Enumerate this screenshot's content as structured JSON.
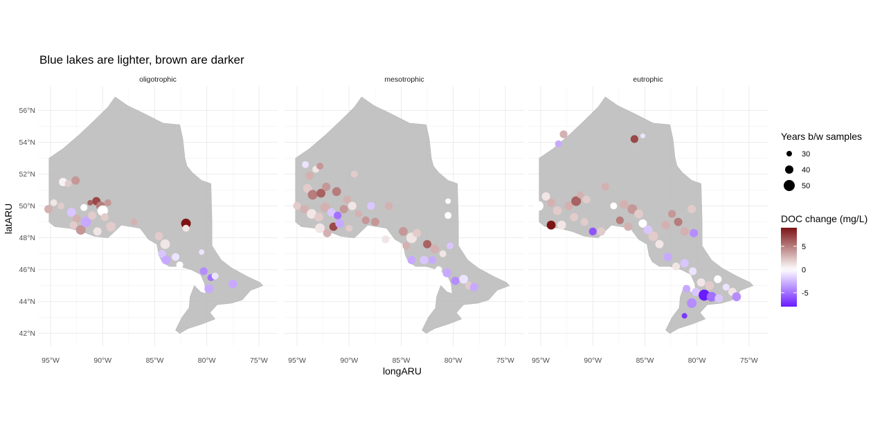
{
  "chart_data": {
    "type": "scatter",
    "title": "Blue lakes are lighter, brown are darker",
    "xlabel": "longARU",
    "ylabel": "latARU",
    "xlim": [
      -96.2,
      -73.2
    ],
    "ylim": [
      41.2,
      57.5
    ],
    "x_ticks": [
      {
        "value": -95,
        "label": "95°W"
      },
      {
        "value": -90,
        "label": "90°W"
      },
      {
        "value": -85,
        "label": "85°W"
      },
      {
        "value": -80,
        "label": "80°W"
      },
      {
        "value": -75,
        "label": "75°W"
      }
    ],
    "y_ticks": [
      {
        "value": 42,
        "label": "42°N"
      },
      {
        "value": 44,
        "label": "44°N"
      },
      {
        "value": 46,
        "label": "46°N"
      },
      {
        "value": 48,
        "label": "48°N"
      },
      {
        "value": 50,
        "label": "50°N"
      },
      {
        "value": 52,
        "label": "52°N"
      },
      {
        "value": 54,
        "label": "54°N"
      },
      {
        "value": 56,
        "label": "56°N"
      }
    ],
    "grid": true,
    "legend_position": "right",
    "size_legend": {
      "title": "Years b/w samples",
      "values": [
        30,
        40,
        50
      ]
    },
    "color_legend": {
      "title": "DOC change (mg/L)",
      "ticks": [
        5,
        0,
        -5
      ],
      "range": [
        -8,
        9
      ],
      "low_color": "#6a1bff",
      "mid_color": "#ffffff",
      "high_color": "#7d1414"
    },
    "map_color": "#bdbdbd",
    "panels": [
      {
        "name": "oligotrophic",
        "points": [
          {
            "x": -95.2,
            "y": 49.8,
            "doc": 3,
            "years": 40
          },
          {
            "x": -94.7,
            "y": 50.2,
            "doc": 1,
            "years": 35
          },
          {
            "x": -93.8,
            "y": 51.5,
            "doc": 0.5,
            "years": 40
          },
          {
            "x": -93.3,
            "y": 51.4,
            "doc": 2,
            "years": 35
          },
          {
            "x": -92.6,
            "y": 51.6,
            "doc": 4,
            "years": 40
          },
          {
            "x": -94.0,
            "y": 50.0,
            "doc": 2,
            "years": 35
          },
          {
            "x": -93.0,
            "y": 49.6,
            "doc": -2,
            "years": 42
          },
          {
            "x": -92.5,
            "y": 49.2,
            "doc": 3,
            "years": 40
          },
          {
            "x": -92.8,
            "y": 48.8,
            "doc": 2,
            "years": 38
          },
          {
            "x": -92.1,
            "y": 48.5,
            "doc": 4,
            "years": 45
          },
          {
            "x": -91.8,
            "y": 49.9,
            "doc": 0,
            "years": 35
          },
          {
            "x": -91.6,
            "y": 49.0,
            "doc": -3,
            "years": 48
          },
          {
            "x": -91.2,
            "y": 50.2,
            "doc": 6,
            "years": 30
          },
          {
            "x": -90.6,
            "y": 50.3,
            "doc": 7,
            "years": 40
          },
          {
            "x": -90.2,
            "y": 50.0,
            "doc": 5,
            "years": 42
          },
          {
            "x": -90.0,
            "y": 49.7,
            "doc": 0,
            "years": 48
          },
          {
            "x": -89.8,
            "y": 49.3,
            "doc": 2,
            "years": 38
          },
          {
            "x": -89.5,
            "y": 50.2,
            "doc": 4,
            "years": 35
          },
          {
            "x": -89.2,
            "y": 48.7,
            "doc": 2,
            "years": 45
          },
          {
            "x": -91.0,
            "y": 49.4,
            "doc": 2,
            "years": 40
          },
          {
            "x": -90.5,
            "y": 48.4,
            "doc": 1,
            "years": 40
          },
          {
            "x": -87.0,
            "y": 49.0,
            "doc": 3,
            "years": 35
          },
          {
            "x": -84.6,
            "y": 48.1,
            "doc": 2,
            "years": 40
          },
          {
            "x": -84.0,
            "y": 47.6,
            "doc": 1,
            "years": 45
          },
          {
            "x": -84.3,
            "y": 47.0,
            "doc": -2,
            "years": 38
          },
          {
            "x": -83.9,
            "y": 46.6,
            "doc": -3,
            "years": 42
          },
          {
            "x": -83.0,
            "y": 46.8,
            "doc": -1,
            "years": 38
          },
          {
            "x": -82.6,
            "y": 46.3,
            "doc": 0,
            "years": 35
          },
          {
            "x": -82.0,
            "y": 48.9,
            "doc": 9,
            "years": 45
          },
          {
            "x": -82.0,
            "y": 48.6,
            "doc": 1,
            "years": 35
          },
          {
            "x": -80.5,
            "y": 47.1,
            "doc": -1,
            "years": 30
          },
          {
            "x": -80.3,
            "y": 45.9,
            "doc": -4,
            "years": 38
          },
          {
            "x": -79.6,
            "y": 45.5,
            "doc": -5,
            "years": 35
          },
          {
            "x": -79.2,
            "y": 45.6,
            "doc": -1,
            "years": 35
          },
          {
            "x": -79.8,
            "y": 44.8,
            "doc": -3,
            "years": 42
          },
          {
            "x": -77.5,
            "y": 45.1,
            "doc": -3,
            "years": 42
          }
        ]
      },
      {
        "name": "mesotrophic",
        "points": [
          {
            "x": -94.2,
            "y": 52.6,
            "doc": -1,
            "years": 35
          },
          {
            "x": -93.2,
            "y": 52.3,
            "doc": 1,
            "years": 35
          },
          {
            "x": -92.8,
            "y": 52.5,
            "doc": 4,
            "years": 35
          },
          {
            "x": -93.8,
            "y": 51.9,
            "doc": 3,
            "years": 40
          },
          {
            "x": -94.0,
            "y": 51.1,
            "doc": 2,
            "years": 42
          },
          {
            "x": -93.5,
            "y": 50.7,
            "doc": 5,
            "years": 45
          },
          {
            "x": -92.7,
            "y": 50.8,
            "doc": 6,
            "years": 42
          },
          {
            "x": -92.2,
            "y": 51.2,
            "doc": 4,
            "years": 40
          },
          {
            "x": -91.2,
            "y": 50.9,
            "doc": 5,
            "years": 42
          },
          {
            "x": -89.5,
            "y": 52.0,
            "doc": 2,
            "years": 35
          },
          {
            "x": -95.0,
            "y": 50.0,
            "doc": 2,
            "years": 38
          },
          {
            "x": -94.3,
            "y": 49.8,
            "doc": 3,
            "years": 40
          },
          {
            "x": -93.6,
            "y": 49.5,
            "doc": 1,
            "years": 45
          },
          {
            "x": -92.9,
            "y": 49.3,
            "doc": 2,
            "years": 42
          },
          {
            "x": -92.3,
            "y": 49.9,
            "doc": 3,
            "years": 45
          },
          {
            "x": -91.7,
            "y": 49.6,
            "doc": -2,
            "years": 40
          },
          {
            "x": -91.1,
            "y": 49.4,
            "doc": -5,
            "years": 38
          },
          {
            "x": -90.5,
            "y": 49.8,
            "doc": 4,
            "years": 40
          },
          {
            "x": -90.2,
            "y": 50.4,
            "doc": 3,
            "years": 38
          },
          {
            "x": -89.7,
            "y": 50.0,
            "doc": 1,
            "years": 40
          },
          {
            "x": -89.1,
            "y": 49.5,
            "doc": 3,
            "years": 35
          },
          {
            "x": -88.4,
            "y": 49.1,
            "doc": 4,
            "years": 38
          },
          {
            "x": -87.5,
            "y": 49.0,
            "doc": 4,
            "years": 40
          },
          {
            "x": -92.8,
            "y": 48.6,
            "doc": 1,
            "years": 45
          },
          {
            "x": -92.1,
            "y": 48.3,
            "doc": 3,
            "years": 40
          },
          {
            "x": -91.5,
            "y": 48.7,
            "doc": 7,
            "years": 40
          },
          {
            "x": -90.9,
            "y": 48.9,
            "doc": -3,
            "years": 42
          },
          {
            "x": -90.0,
            "y": 48.6,
            "doc": 2,
            "years": 35
          },
          {
            "x": -87.9,
            "y": 50.0,
            "doc": -2,
            "years": 38
          },
          {
            "x": -86.2,
            "y": 50.0,
            "doc": 3,
            "years": 38
          },
          {
            "x": -84.8,
            "y": 48.4,
            "doc": 4,
            "years": 42
          },
          {
            "x": -84.0,
            "y": 48.0,
            "doc": 1,
            "years": 48
          },
          {
            "x": -83.5,
            "y": 48.3,
            "doc": 2,
            "years": 40
          },
          {
            "x": -84.5,
            "y": 47.5,
            "doc": 3,
            "years": 38
          },
          {
            "x": -84.0,
            "y": 46.6,
            "doc": -3,
            "years": 40
          },
          {
            "x": -82.5,
            "y": 47.6,
            "doc": 6,
            "years": 40
          },
          {
            "x": -81.8,
            "y": 47.3,
            "doc": 3,
            "years": 42
          },
          {
            "x": -81.0,
            "y": 47.0,
            "doc": 1,
            "years": 35
          },
          {
            "x": -82.8,
            "y": 46.6,
            "doc": -2,
            "years": 40
          },
          {
            "x": -82.0,
            "y": 46.6,
            "doc": -3,
            "years": 38
          },
          {
            "x": -81.4,
            "y": 46.0,
            "doc": 0,
            "years": 35
          },
          {
            "x": -80.6,
            "y": 45.8,
            "doc": -3,
            "years": 42
          },
          {
            "x": -79.8,
            "y": 45.3,
            "doc": -4,
            "years": 40
          },
          {
            "x": -79.0,
            "y": 45.4,
            "doc": -1,
            "years": 42
          },
          {
            "x": -78.5,
            "y": 45.0,
            "doc": 2,
            "years": 38
          },
          {
            "x": -78.0,
            "y": 44.9,
            "doc": -3,
            "years": 40
          },
          {
            "x": -80.3,
            "y": 47.5,
            "doc": -2,
            "years": 35
          },
          {
            "x": -80.5,
            "y": 49.4,
            "doc": 0,
            "years": 35
          },
          {
            "x": -80.5,
            "y": 50.3,
            "doc": 0,
            "years": 30
          },
          {
            "x": -86.5,
            "y": 47.9,
            "doc": 1,
            "years": 38
          }
        ]
      },
      {
        "name": "eutrophic",
        "points": [
          {
            "x": -92.8,
            "y": 54.5,
            "doc": 3,
            "years": 38
          },
          {
            "x": -93.3,
            "y": 53.9,
            "doc": -3,
            "years": 35
          },
          {
            "x": -86.0,
            "y": 54.2,
            "doc": 7,
            "years": 38
          },
          {
            "x": -85.2,
            "y": 54.4,
            "doc": -1,
            "years": 28
          },
          {
            "x": -88.8,
            "y": 51.2,
            "doc": 3,
            "years": 38
          },
          {
            "x": -95.2,
            "y": 50.0,
            "doc": 0,
            "years": 45
          },
          {
            "x": -94.5,
            "y": 50.6,
            "doc": 1,
            "years": 40
          },
          {
            "x": -94.0,
            "y": 50.2,
            "doc": 3,
            "years": 40
          },
          {
            "x": -93.4,
            "y": 49.7,
            "doc": 2,
            "years": 42
          },
          {
            "x": -94.0,
            "y": 48.8,
            "doc": 9,
            "years": 42
          },
          {
            "x": -93.0,
            "y": 48.8,
            "doc": 1,
            "years": 42
          },
          {
            "x": -92.3,
            "y": 50.0,
            "doc": 3,
            "years": 42
          },
          {
            "x": -91.6,
            "y": 50.3,
            "doc": 6,
            "years": 45
          },
          {
            "x": -91.2,
            "y": 50.7,
            "doc": 3,
            "years": 35
          },
          {
            "x": -90.6,
            "y": 50.4,
            "doc": 2,
            "years": 38
          },
          {
            "x": -91.8,
            "y": 49.3,
            "doc": 2,
            "years": 40
          },
          {
            "x": -90.8,
            "y": 49.0,
            "doc": 2,
            "years": 38
          },
          {
            "x": -90.0,
            "y": 48.4,
            "doc": -6,
            "years": 38
          },
          {
            "x": -89.2,
            "y": 48.4,
            "doc": 2,
            "years": 40
          },
          {
            "x": -88.0,
            "y": 50.0,
            "doc": 0,
            "years": 35
          },
          {
            "x": -87.0,
            "y": 50.1,
            "doc": 3,
            "years": 42
          },
          {
            "x": -86.2,
            "y": 49.8,
            "doc": 4,
            "years": 45
          },
          {
            "x": -85.6,
            "y": 49.5,
            "doc": 2,
            "years": 42
          },
          {
            "x": -87.4,
            "y": 49.1,
            "doc": 5,
            "years": 38
          },
          {
            "x": -86.6,
            "y": 48.7,
            "doc": 3,
            "years": 40
          },
          {
            "x": -85.2,
            "y": 48.9,
            "doc": 0,
            "years": 40
          },
          {
            "x": -84.7,
            "y": 48.5,
            "doc": -2,
            "years": 42
          },
          {
            "x": -84.2,
            "y": 48.1,
            "doc": 2,
            "years": 45
          },
          {
            "x": -83.6,
            "y": 47.6,
            "doc": 1,
            "years": 40
          },
          {
            "x": -83.0,
            "y": 48.8,
            "doc": 3,
            "years": 42
          },
          {
            "x": -82.4,
            "y": 49.5,
            "doc": 4,
            "years": 38
          },
          {
            "x": -81.8,
            "y": 49.0,
            "doc": 5,
            "years": 40
          },
          {
            "x": -81.2,
            "y": 48.4,
            "doc": 3,
            "years": 42
          },
          {
            "x": -80.5,
            "y": 49.8,
            "doc": 2,
            "years": 40
          },
          {
            "x": -80.3,
            "y": 48.3,
            "doc": -4,
            "years": 40
          },
          {
            "x": -82.8,
            "y": 46.8,
            "doc": -3,
            "years": 40
          },
          {
            "x": -82.0,
            "y": 46.2,
            "doc": 1,
            "years": 38
          },
          {
            "x": -81.2,
            "y": 46.4,
            "doc": -2,
            "years": 40
          },
          {
            "x": -80.4,
            "y": 45.9,
            "doc": -1,
            "years": 38
          },
          {
            "x": -79.6,
            "y": 45.2,
            "doc": 1,
            "years": 40
          },
          {
            "x": -78.8,
            "y": 45.0,
            "doc": 2,
            "years": 42
          },
          {
            "x": -78.0,
            "y": 45.4,
            "doc": 0,
            "years": 38
          },
          {
            "x": -77.2,
            "y": 44.9,
            "doc": -1,
            "years": 35
          },
          {
            "x": -81.0,
            "y": 44.8,
            "doc": -3,
            "years": 38
          },
          {
            "x": -80.1,
            "y": 44.6,
            "doc": -2,
            "years": 40
          },
          {
            "x": -79.3,
            "y": 44.4,
            "doc": -8,
            "years": 50
          },
          {
            "x": -78.6,
            "y": 44.3,
            "doc": -5,
            "years": 45
          },
          {
            "x": -77.9,
            "y": 44.2,
            "doc": -2,
            "years": 40
          },
          {
            "x": -76.6,
            "y": 44.6,
            "doc": 1,
            "years": 40
          },
          {
            "x": -76.2,
            "y": 44.3,
            "doc": -4,
            "years": 42
          },
          {
            "x": -80.5,
            "y": 43.9,
            "doc": -4,
            "years": 45
          },
          {
            "x": -81.2,
            "y": 43.1,
            "doc": -7,
            "years": 30
          }
        ]
      }
    ]
  }
}
